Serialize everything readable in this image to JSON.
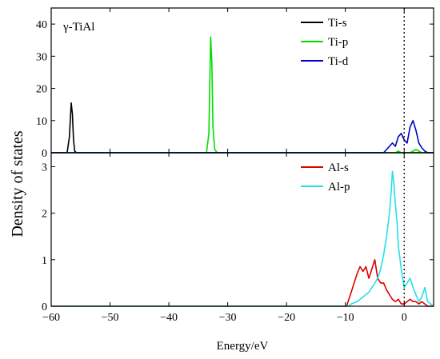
{
  "chart_data": {
    "type": "line",
    "xlabel": "Energy/eV",
    "ylabel": "Density of states",
    "x_ticks": [
      "-60",
      "-50",
      "-40",
      "-30",
      "-20",
      "-10",
      "0"
    ],
    "xlim": [
      -60,
      5
    ],
    "fermi_level": 0,
    "panels": [
      {
        "title": "γ-TiAl",
        "ylim": [
          0,
          45
        ],
        "y_ticks": [
          "0",
          "10",
          "20",
          "30",
          "40"
        ],
        "legend": "top-right",
        "series": [
          {
            "name": "Ti-s",
            "color": "#000000",
            "x": [
              -60,
              -57.3,
              -56.9,
              -56.6,
              -56.4,
              -56.2,
              -56.0,
              -55.7,
              5
            ],
            "y": [
              0,
              0,
              5,
              15.5,
              12,
              4,
              0.5,
              0,
              0
            ]
          },
          {
            "name": "Ti-p",
            "color": "#00dd00",
            "x": [
              -60,
              -33.6,
              -33.2,
              -32.9,
              -32.7,
              -32.5,
              -32.2,
              -31.8,
              -1.5,
              -1.0,
              -0.5,
              1.0,
              1.5,
              2.0,
              2.5,
              3.0,
              5
            ],
            "y": [
              0,
              0,
              6,
              36,
              28,
              8,
              1,
              0,
              0,
              0.5,
              0,
              0,
              0.5,
              1,
              0.5,
              0,
              0
            ]
          },
          {
            "name": "Ti-d",
            "color": "#0000cc",
            "x": [
              -60,
              -3.5,
              -3.0,
              -2.5,
              -2.0,
              -1.5,
              -1.0,
              -0.5,
              0.0,
              0.5,
              1.0,
              1.5,
              2.0,
              2.5,
              3.0,
              3.5,
              4.0,
              5
            ],
            "y": [
              0,
              0,
              1,
              2,
              3,
              2,
              5,
              6,
              4,
              3,
              8,
              10,
              7,
              3,
              1.5,
              0.5,
              0,
              0
            ]
          }
        ]
      },
      {
        "ylim": [
          0,
          3.3
        ],
        "y_ticks": [
          "0",
          "1",
          "2",
          "3"
        ],
        "legend": "top-right",
        "series": [
          {
            "name": "Al-s",
            "color": "#dd0000",
            "x": [
              -60,
              -9.8,
              -9.0,
              -8.0,
              -7.5,
              -7.0,
              -6.5,
              -6.0,
              -5.5,
              -5.0,
              -4.5,
              -4.0,
              -3.5,
              -3.0,
              -2.5,
              -2.0,
              -1.5,
              -1.0,
              -0.5,
              0.0,
              0.5,
              1.0,
              1.5,
              2.0,
              2.5,
              3.0,
              3.5,
              4.0,
              5
            ],
            "y": [
              0,
              0,
              0.3,
              0.7,
              0.85,
              0.75,
              0.85,
              0.6,
              0.8,
              1.0,
              0.6,
              0.5,
              0.5,
              0.35,
              0.25,
              0.15,
              0.1,
              0.15,
              0.05,
              0.05,
              0.1,
              0.15,
              0.1,
              0.1,
              0.05,
              0.1,
              0.05,
              0,
              0
            ]
          },
          {
            "name": "Al-p",
            "color": "#22e0e8",
            "x": [
              -60,
              -9.5,
              -9.0,
              -8.0,
              -7.0,
              -6.0,
              -5.0,
              -4.5,
              -4.0,
              -3.5,
              -3.0,
              -2.5,
              -2.2,
              -2.0,
              -1.8,
              -1.5,
              -1.2,
              -1.0,
              -0.5,
              0.0,
              0.5,
              1.0,
              1.5,
              2.0,
              2.5,
              3.0,
              3.5,
              4.0,
              5
            ],
            "y": [
              0,
              0,
              0.05,
              0.1,
              0.2,
              0.3,
              0.5,
              0.6,
              0.8,
              1.1,
              1.5,
              2.0,
              2.5,
              2.9,
              2.7,
              2.2,
              1.8,
              1.3,
              0.8,
              0.4,
              0.5,
              0.6,
              0.4,
              0.25,
              0.1,
              0.2,
              0.4,
              0.1,
              0
            ]
          }
        ]
      }
    ]
  }
}
